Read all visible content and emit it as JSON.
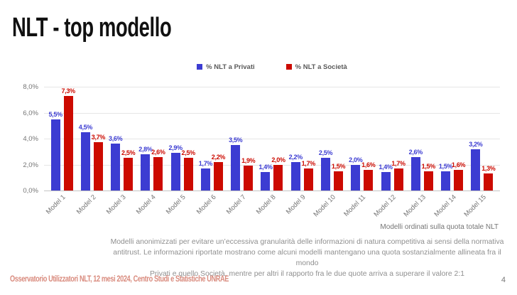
{
  "slide": {
    "title": "NLT - top modello",
    "source": "Osservatorio Utilizzatori NLT, 12 mesi 2024, Centro Studi e Statistiche UNRAE",
    "page_number": "4"
  },
  "note": "Modelli ordinati sulla quota totale NLT",
  "footnote": {
    "lines": [
      "Modelli anonimizzati per evitare un’eccessiva granularità delle informazioni di natura competitiva ai sensi della normativa",
      "antitrust. Le informazioni riportate mostrano come alcuni modelli mantengano una quota sostanzialmente allineata fra il mondo",
      "Privati e quello Società, mentre per altri il rapporto fra le due quote arriva a superare il valore 2:1"
    ]
  },
  "chart_data": {
    "type": "bar",
    "title": "",
    "categories": [
      "Model 1",
      "Model 2",
      "Model 3",
      "Model 4",
      "Model 5",
      "Model 6",
      "Model 7",
      "Model 8",
      "Model 9",
      "Model 10",
      "Model 11",
      "Model 12",
      "Model 13",
      "Model 14",
      "Model 15"
    ],
    "series": [
      {
        "name": "% NLT a Privati",
        "color": "#3c3cd2",
        "values": [
          5.5,
          4.5,
          3.6,
          2.8,
          2.9,
          1.7,
          3.5,
          1.4,
          2.2,
          2.5,
          2.0,
          1.4,
          2.6,
          1.5,
          3.2
        ]
      },
      {
        "name": "% NLT a Società",
        "color": "#cc0a00",
        "values": [
          7.3,
          3.7,
          2.5,
          2.6,
          2.5,
          2.2,
          1.9,
          2.0,
          1.7,
          1.5,
          1.6,
          1.7,
          1.5,
          1.6,
          1.3
        ]
      }
    ],
    "xlabel": "",
    "ylabel": "",
    "ylim": [
      0,
      8
    ],
    "yticks": [
      0,
      2,
      4,
      6,
      8
    ],
    "ytick_format": "0,0%",
    "grid": true,
    "legend_position": "top",
    "value_labels": true
  }
}
